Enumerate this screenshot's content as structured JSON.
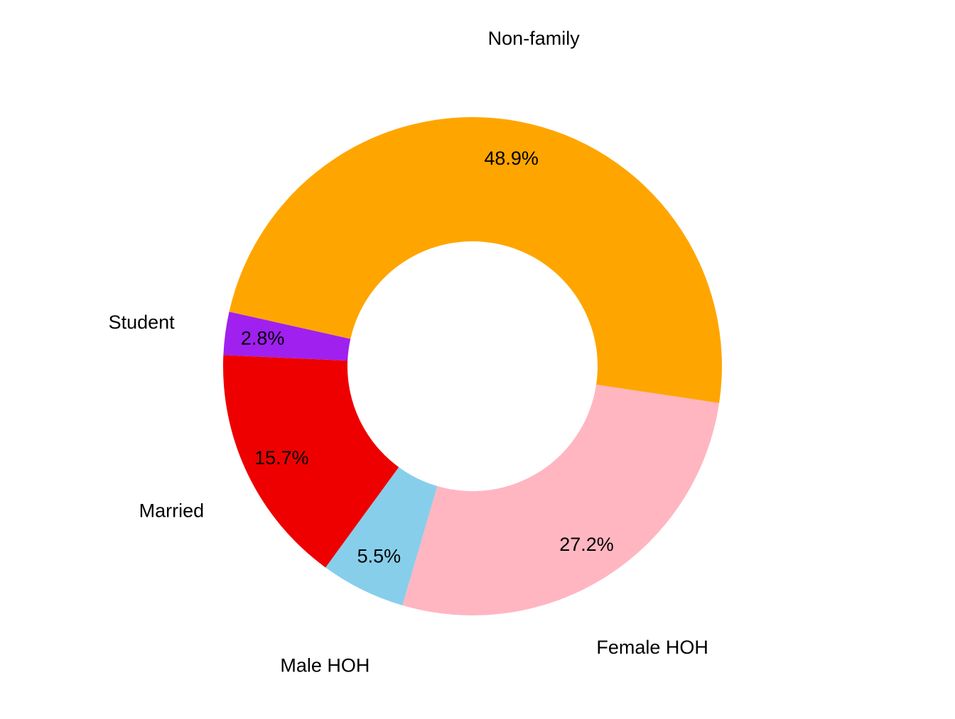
{
  "chart_data": {
    "type": "pie",
    "subtype": "donut",
    "slices": [
      {
        "label": "Non-family",
        "value": 48.9,
        "percent_label": "48.9%",
        "color": "#FFA500"
      },
      {
        "label": "Student",
        "value": 2.8,
        "percent_label": "2.8%",
        "color": "#A020F0"
      },
      {
        "label": "Married",
        "value": 15.7,
        "percent_label": "15.7%",
        "color": "#EE0000"
      },
      {
        "label": "Male HOH",
        "value": 5.5,
        "percent_label": "5.5%",
        "color": "#87CEEB"
      },
      {
        "label": "Female HOH",
        "value": 27.2,
        "percent_label": "27.2%",
        "color": "#FFB6C1"
      }
    ],
    "legend": "none"
  }
}
